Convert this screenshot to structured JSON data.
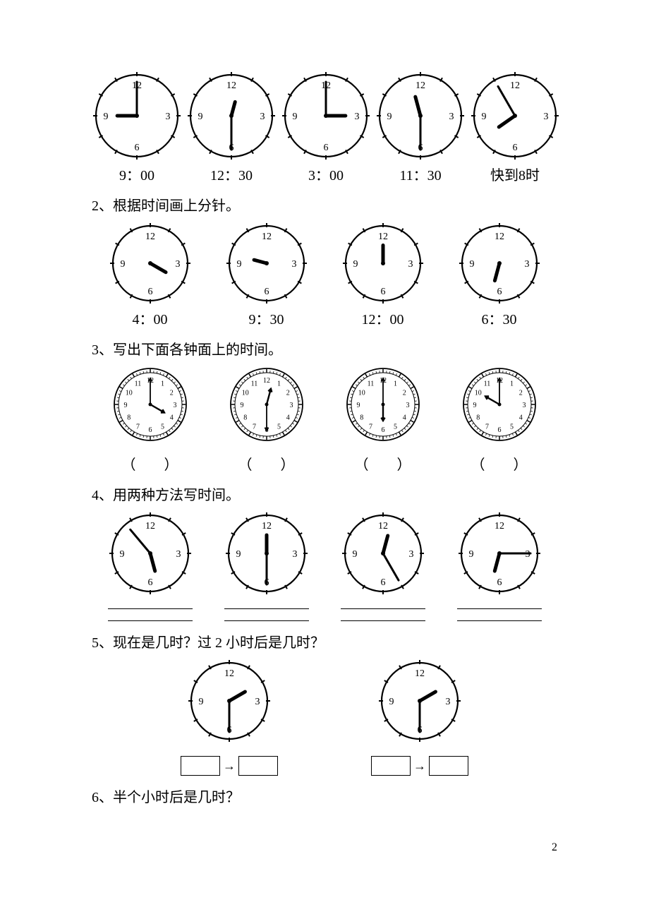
{
  "clock_numbers": {
    "n12": "12",
    "n3": "3",
    "n6": "6",
    "n9": "9"
  },
  "detailed_numbers": [
    "12",
    "1",
    "2",
    "3",
    "4",
    "5",
    "6",
    "7",
    "8",
    "9",
    "10",
    "11"
  ],
  "q1": {
    "clocks": [
      {
        "hour_angle": 270,
        "minute_angle": 0,
        "label": "9：00"
      },
      {
        "hour_angle": 15,
        "minute_angle": 180,
        "label": "12：30",
        "short_hour": true
      },
      {
        "hour_angle": 90,
        "minute_angle": 0,
        "label": "3：00"
      },
      {
        "hour_angle": 345,
        "minute_angle": 180,
        "label": "11：30"
      },
      {
        "hour_angle": 235,
        "minute_angle": 330,
        "label": "快到8时"
      }
    ]
  },
  "q2": {
    "title": "2、根据时间画上分针。",
    "clocks": [
      {
        "hour_angle": 120,
        "label": "4：00"
      },
      {
        "hour_angle": 285,
        "label": "9：30",
        "short_hour": true
      },
      {
        "hour_angle": 0,
        "label": "12：00"
      },
      {
        "hour_angle": 195,
        "label": "6：30"
      }
    ]
  },
  "q3": {
    "title": "3、写出下面各钟面上的时间。",
    "clocks": [
      {
        "hour_angle": 120,
        "minute_angle": 0
      },
      {
        "hour_angle": 15,
        "minute_angle": 180
      },
      {
        "hour_angle": 180,
        "minute_angle": 0
      },
      {
        "hour_angle": 300,
        "minute_angle": 0
      }
    ],
    "paren_left": "（",
    "paren_right": "）"
  },
  "q4": {
    "title": "4、用两种方法写时间。",
    "clocks": [
      {
        "hour_angle": 165,
        "minute_angle": 320
      },
      {
        "hour_angle": 0,
        "minute_angle": 180
      },
      {
        "hour_angle": 15,
        "minute_angle": 150
      },
      {
        "hour_angle": 195,
        "minute_angle": 90
      }
    ]
  },
  "q5": {
    "title": "5、现在是几时？过 2 小时后是几时？",
    "clocks": [
      {
        "hour_angle": 60,
        "minute_angle": 180
      },
      {
        "hour_angle": 60,
        "minute_angle": 180
      }
    ]
  },
  "q6": {
    "title": "6、半个小时后是几时？"
  },
  "page_number": "2",
  "style": {
    "stroke": "#000000",
    "stroke_width": 2,
    "simple_radius": 52,
    "simple_size": 120,
    "small_simple_size": 110,
    "detailed_size": 110,
    "num_font": 14,
    "detailed_num_font": 10
  }
}
